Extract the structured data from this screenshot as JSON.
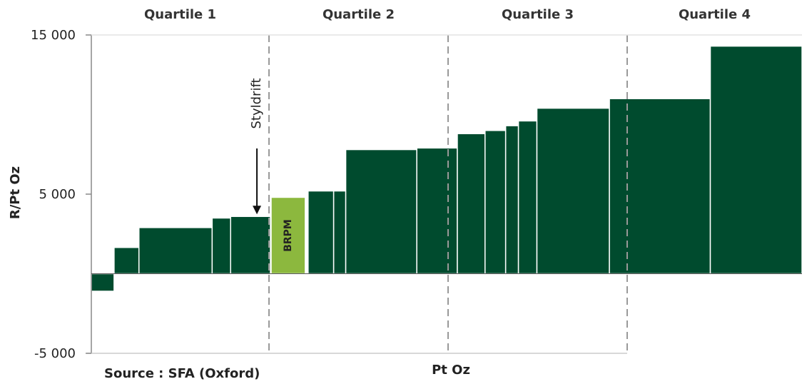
{
  "chart_data": {
    "type": "bar",
    "variant": "variable-width cost curve",
    "ylabel": "R/Pt Oz",
    "xlabel": "Pt Oz",
    "source": "Source : SFA (Oxford)",
    "ylim": [
      -5000,
      15000
    ],
    "y_ticks": [
      {
        "value": 15000,
        "label": "15 000"
      },
      {
        "value": 5000,
        "label": "5 000"
      },
      {
        "value": -5000,
        "label": "-5 000"
      }
    ],
    "quartiles": [
      {
        "label": "Quartile 1",
        "start": 0.0,
        "end": 25.0
      },
      {
        "label": "Quartile 2",
        "start": 25.0,
        "end": 50.2
      },
      {
        "label": "Quartile 3",
        "start": 50.2,
        "end": 75.4
      },
      {
        "label": "Quartile 4",
        "start": 75.4,
        "end": 100.0
      }
    ],
    "series": [
      {
        "start": 0.0,
        "width": 3.2,
        "value": -1100
      },
      {
        "start": 3.2,
        "width": 3.5,
        "value": 1650
      },
      {
        "start": 6.7,
        "width": 10.3,
        "value": 2900
      },
      {
        "start": 17.0,
        "width": 2.6,
        "value": 3500
      },
      {
        "start": 19.6,
        "width": 5.6,
        "value": 3600
      },
      {
        "start": 25.3,
        "width": 4.8,
        "value": 4800,
        "label": "BRPM",
        "highlight": true
      },
      {
        "start": 30.5,
        "width": 3.6,
        "value": 5200
      },
      {
        "start": 34.1,
        "width": 1.7,
        "value": 5200
      },
      {
        "start": 35.8,
        "width": 10.0,
        "value": 7800
      },
      {
        "start": 45.8,
        "width": 5.7,
        "value": 7900
      },
      {
        "start": 51.5,
        "width": 3.9,
        "value": 8800
      },
      {
        "start": 55.4,
        "width": 2.9,
        "value": 9000
      },
      {
        "start": 58.3,
        "width": 1.8,
        "value": 9300
      },
      {
        "start": 60.1,
        "width": 2.6,
        "value": 9600
      },
      {
        "start": 62.7,
        "width": 10.2,
        "value": 10400
      },
      {
        "start": 72.9,
        "width": 14.2,
        "value": 11000
      },
      {
        "start": 87.1,
        "width": 12.9,
        "value": 14300
      }
    ],
    "annotation": {
      "label": "Styldrift",
      "x": 23.3,
      "value": 3600
    },
    "colors": {
      "bar": "#004B2E",
      "highlight": "#8CB83E",
      "divider": "#999999",
      "axis": "#888888",
      "zero_line": "#555555"
    }
  }
}
